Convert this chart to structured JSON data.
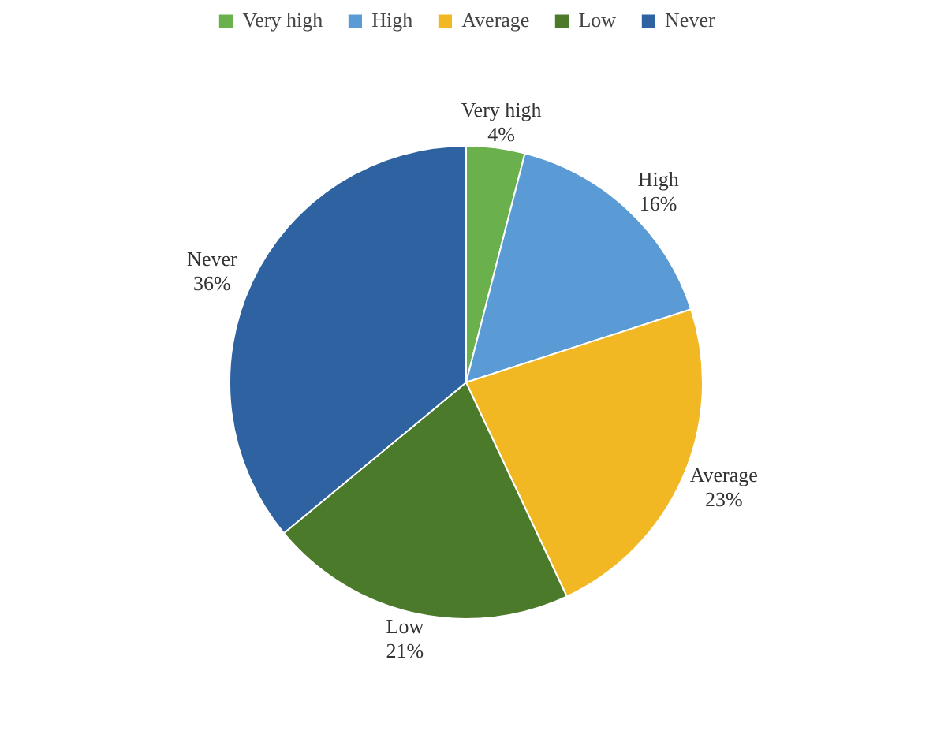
{
  "chart_data": {
    "type": "pie",
    "categories": [
      "Very high",
      "High",
      "Average",
      "Low",
      "Never"
    ],
    "values": [
      4,
      16,
      23,
      21,
      36
    ],
    "value_labels": [
      "4%",
      "16%",
      "23%",
      "21%",
      "36%"
    ],
    "colors": [
      "#6ab04c",
      "#5b9bd5",
      "#f2b824",
      "#4b7a2b",
      "#2f62a0"
    ],
    "legend": "top"
  }
}
